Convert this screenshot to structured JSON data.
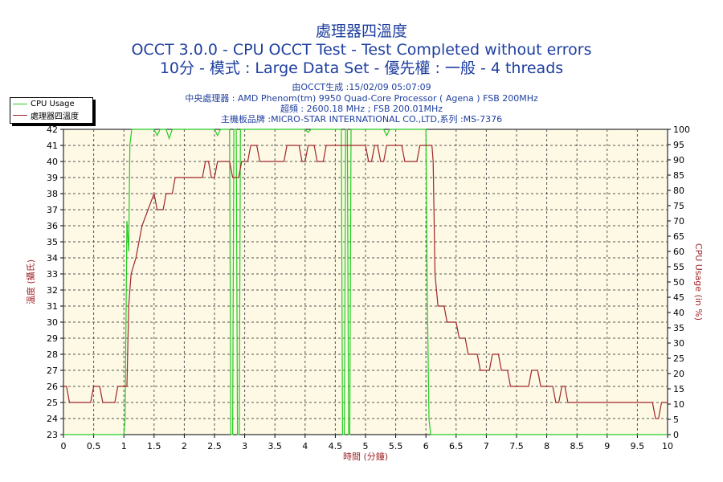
{
  "titles": {
    "line1": "處理器四溫度",
    "line2": "OCCT 3.0.0 - CPU OCCT Test - Test Completed without errors",
    "line3": "10分 - 模式 : Large Data Set - 優先權 : 一般 - 4 threads"
  },
  "info": {
    "generated": "由OCCT生成 :15/02/09 05:07:09",
    "cpu": "中央處理器 : AMD Phenom(tm) 9950 Quad-Core Processor ( Agena ) FSB 200MHz",
    "freq": "超頻 : 2600.18 MHz ; FSB 200.01MHz",
    "mobo": "主機板品牌 :MICRO-STAR INTERNATIONAL CO.,LTD,系列 :MS-7376"
  },
  "colors": {
    "temp": "#a0262a",
    "cpu": "#22cc22",
    "plot_bg": "#fdf9e4",
    "text": "#1f3f9f",
    "axis_label_left": "#a0262a"
  },
  "chart_data": {
    "type": "line",
    "xlabel": "時間 (分鐘)",
    "ylabel_left": "溫度 (攝氏)",
    "ylabel_right": "CPU Usage (in %)",
    "xlim": [
      0,
      10
    ],
    "ylim_left": [
      23,
      42
    ],
    "ylim_right": [
      0,
      100
    ],
    "x_ticks": [
      "0",
      "0.5",
      "1",
      "1.5",
      "2",
      "2.5",
      "3",
      "3.5",
      "4",
      "4.5",
      "5",
      "5.5",
      "6",
      "6.5",
      "7",
      "7.5",
      "8",
      "8.5",
      "9",
      "9.5",
      "10"
    ],
    "grid": true,
    "legend_position": "top-left",
    "series": [
      {
        "name": "CPU Usage",
        "axis": "right",
        "points": [
          [
            0,
            0
          ],
          [
            1.0,
            0
          ],
          [
            1.02,
            5
          ],
          [
            1.05,
            70
          ],
          [
            1.08,
            60
          ],
          [
            1.1,
            95
          ],
          [
            1.13,
            100
          ],
          [
            1.5,
            100
          ],
          [
            1.55,
            98
          ],
          [
            1.6,
            100
          ],
          [
            1.7,
            100
          ],
          [
            1.75,
            97
          ],
          [
            1.8,
            100
          ],
          [
            2.0,
            100
          ],
          [
            2.5,
            100
          ],
          [
            2.55,
            98
          ],
          [
            2.6,
            100
          ],
          [
            2.75,
            100
          ],
          [
            2.77,
            0
          ],
          [
            2.8,
            0
          ],
          [
            2.82,
            100
          ],
          [
            2.86,
            100
          ],
          [
            2.88,
            0
          ],
          [
            2.91,
            0
          ],
          [
            2.93,
            100
          ],
          [
            4.0,
            100
          ],
          [
            4.05,
            99
          ],
          [
            4.1,
            100
          ],
          [
            4.6,
            100
          ],
          [
            4.62,
            0
          ],
          [
            4.65,
            0
          ],
          [
            4.67,
            100
          ],
          [
            4.7,
            100
          ],
          [
            4.72,
            0
          ],
          [
            4.74,
            0
          ],
          [
            4.76,
            100
          ],
          [
            5.3,
            100
          ],
          [
            5.35,
            98
          ],
          [
            5.4,
            100
          ],
          [
            6.0,
            100
          ],
          [
            6.02,
            50
          ],
          [
            6.05,
            5
          ],
          [
            6.08,
            0
          ],
          [
            10,
            0
          ]
        ]
      },
      {
        "name": "處理器四溫度",
        "axis": "left",
        "points": [
          [
            0,
            26
          ],
          [
            0.05,
            26
          ],
          [
            0.1,
            25
          ],
          [
            0.45,
            25
          ],
          [
            0.5,
            26
          ],
          [
            0.6,
            26
          ],
          [
            0.65,
            25
          ],
          [
            0.85,
            25
          ],
          [
            0.9,
            26
          ],
          [
            1.05,
            26
          ],
          [
            1.08,
            31
          ],
          [
            1.12,
            33
          ],
          [
            1.2,
            34
          ],
          [
            1.25,
            35
          ],
          [
            1.3,
            36
          ],
          [
            1.4,
            37
          ],
          [
            1.5,
            38
          ],
          [
            1.55,
            37
          ],
          [
            1.65,
            37
          ],
          [
            1.7,
            38
          ],
          [
            1.8,
            38
          ],
          [
            1.85,
            39
          ],
          [
            2.3,
            39
          ],
          [
            2.35,
            40
          ],
          [
            2.4,
            40
          ],
          [
            2.45,
            39
          ],
          [
            2.5,
            39
          ],
          [
            2.55,
            40
          ],
          [
            2.75,
            40
          ],
          [
            2.8,
            39
          ],
          [
            2.9,
            39
          ],
          [
            2.95,
            40
          ],
          [
            3.05,
            40
          ],
          [
            3.1,
            41
          ],
          [
            3.2,
            41
          ],
          [
            3.25,
            40
          ],
          [
            3.65,
            40
          ],
          [
            3.7,
            41
          ],
          [
            3.9,
            41
          ],
          [
            3.95,
            40
          ],
          [
            4.0,
            40
          ],
          [
            4.05,
            41
          ],
          [
            4.15,
            41
          ],
          [
            4.2,
            40
          ],
          [
            4.3,
            40
          ],
          [
            4.35,
            41
          ],
          [
            5.0,
            41
          ],
          [
            5.05,
            40
          ],
          [
            5.1,
            40
          ],
          [
            5.15,
            41
          ],
          [
            5.2,
            41
          ],
          [
            5.25,
            40
          ],
          [
            5.3,
            40
          ],
          [
            5.35,
            41
          ],
          [
            5.6,
            41
          ],
          [
            5.65,
            40
          ],
          [
            5.85,
            40
          ],
          [
            5.9,
            41
          ],
          [
            6.1,
            41
          ],
          [
            6.12,
            40
          ],
          [
            6.15,
            33
          ],
          [
            6.2,
            31
          ],
          [
            6.3,
            31
          ],
          [
            6.35,
            30
          ],
          [
            6.5,
            30
          ],
          [
            6.55,
            29
          ],
          [
            6.65,
            29
          ],
          [
            6.7,
            28
          ],
          [
            6.85,
            28
          ],
          [
            6.9,
            27
          ],
          [
            7.05,
            27
          ],
          [
            7.1,
            28
          ],
          [
            7.2,
            28
          ],
          [
            7.25,
            27
          ],
          [
            7.35,
            27
          ],
          [
            7.4,
            26
          ],
          [
            7.7,
            26
          ],
          [
            7.75,
            27
          ],
          [
            7.85,
            27
          ],
          [
            7.9,
            26
          ],
          [
            8.1,
            26
          ],
          [
            8.15,
            25
          ],
          [
            8.2,
            25
          ],
          [
            8.25,
            26
          ],
          [
            8.3,
            26
          ],
          [
            8.35,
            25
          ],
          [
            9.75,
            25
          ],
          [
            9.8,
            24
          ],
          [
            9.85,
            24
          ],
          [
            9.9,
            25
          ],
          [
            10,
            25
          ]
        ]
      }
    ]
  }
}
